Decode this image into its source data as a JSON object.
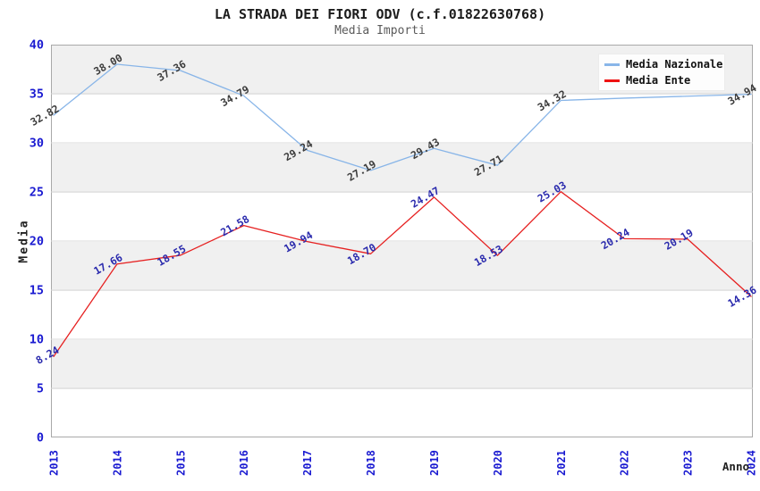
{
  "header": {
    "title": "LA STRADA DEI FIORI ODV (c.f.01822630768)",
    "subtitle": "Media Importi"
  },
  "legend": {
    "items": [
      {
        "label": "Media Nazionale",
        "color": "#88b5e8"
      },
      {
        "label": "Media Ente",
        "color": "#ee1111"
      }
    ]
  },
  "axes": {
    "tick_color": "#1a1ad1",
    "grid_color": "#d8d8d8",
    "border_color": "#a9a9a9"
  },
  "chart_data": {
    "type": "line",
    "title": "LA STRADA DEI FIORI ODV (c.f.01822630768)",
    "subtitle": "Media Importi",
    "xlabel": "Anno",
    "ylabel": "Media",
    "ylim": [
      0,
      40
    ],
    "ytick_step": 5,
    "grid": "horizontal",
    "legend_position": "top-right",
    "x": [
      "2013",
      "2014",
      "2015",
      "2016",
      "2017",
      "2018",
      "2019",
      "2020",
      "2021",
      "2022",
      "2023",
      "2024"
    ],
    "series": [
      {
        "name": "Media Nazionale",
        "color": "#88b5e8",
        "label_color": "#3c3c3c",
        "values": [
          32.82,
          38.0,
          37.36,
          34.79,
          29.24,
          27.19,
          29.43,
          27.71,
          34.32,
          34.55,
          34.75,
          34.94
        ],
        "point_labels": [
          "32.82",
          "38.00",
          "37.36",
          "34.79",
          "29.24",
          "27.19",
          "29.43",
          "27.71",
          "34.32",
          null,
          null,
          "34.94"
        ]
      },
      {
        "name": "Media Ente",
        "color": "#e62020",
        "label_color": "#2a2aad",
        "values": [
          8.24,
          17.66,
          18.55,
          21.58,
          19.94,
          18.7,
          24.47,
          18.53,
          25.03,
          20.24,
          20.19,
          14.36
        ],
        "point_labels": [
          "8.24",
          "17.66",
          "18.55",
          "21.58",
          "19.94",
          "18.70",
          "24.47",
          "18.53",
          "25.03",
          "20.24",
          "20.19",
          "14.36"
        ]
      }
    ]
  }
}
